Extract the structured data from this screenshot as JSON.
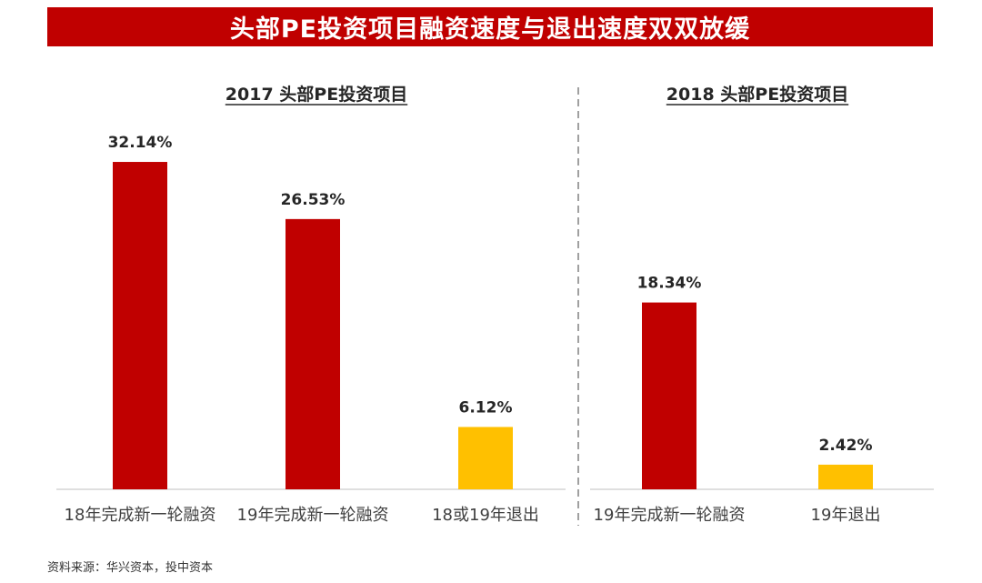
{
  "header": {
    "title": "头部PE投资项目融资速度与退出速度双双放缓"
  },
  "source": "资料来源：华兴资本，投中资本",
  "colors": {
    "primary": "#c00000",
    "secondary": "#ffc000",
    "axis": "#bfbfbf",
    "divider": "#808080"
  },
  "chart_data": [
    {
      "type": "bar",
      "title": "2017 头部PE投资项目",
      "categories": [
        "18年完成新一轮融资",
        "19年完成新一轮融资",
        "18或19年退出"
      ],
      "values": [
        32.14,
        26.53,
        6.12
      ],
      "labels": [
        "32.14%",
        "26.53%",
        "6.12%"
      ],
      "colors": [
        "#c00000",
        "#c00000",
        "#ffc000"
      ],
      "unit": "%",
      "ylim": [
        0,
        35
      ],
      "grid": false
    },
    {
      "type": "bar",
      "title": "2018 头部PE投资项目",
      "categories": [
        "19年完成新一轮融资",
        "19年退出"
      ],
      "values": [
        18.34,
        2.42
      ],
      "labels": [
        "18.34%",
        "2.42%"
      ],
      "colors": [
        "#c00000",
        "#ffc000"
      ],
      "unit": "%",
      "ylim": [
        0,
        35
      ],
      "grid": false
    }
  ]
}
